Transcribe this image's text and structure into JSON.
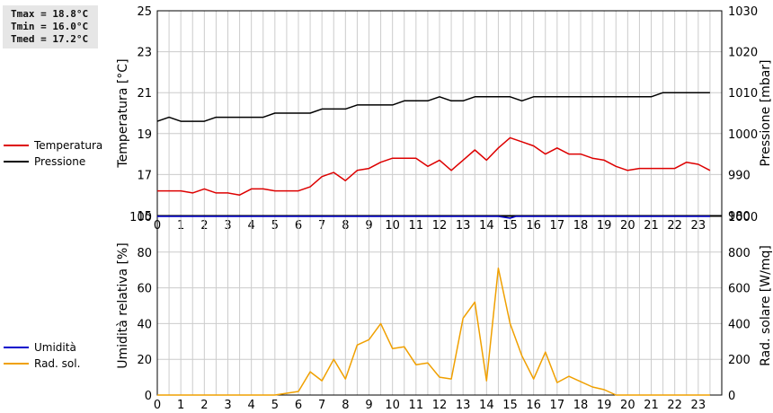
{
  "stats": {
    "tmax": "Tmax = 18.8°C",
    "tmin": "Tmin = 16.0°C",
    "tmed": "Tmed = 17.2°C"
  },
  "chart_data": [
    {
      "type": "line",
      "x_ticks": [
        0,
        1,
        2,
        3,
        4,
        5,
        6,
        7,
        8,
        9,
        10,
        11,
        12,
        13,
        14,
        15,
        16,
        17,
        18,
        19,
        20,
        21,
        22,
        23
      ],
      "xlim": [
        0,
        24
      ],
      "ylabel_left": "Temperatura [°C]",
      "ylim_left": [
        15,
        25
      ],
      "yticks_left": [
        15,
        17,
        19,
        21,
        23,
        25
      ],
      "ylabel_right": "Pressione [mbar]",
      "ylim_right": [
        980,
        1030
      ],
      "yticks_right": [
        980,
        990,
        1000,
        1010,
        1020,
        1030
      ],
      "grid": true,
      "legend_position": "left",
      "series": [
        {
          "name": "Temperatura",
          "axis": "left",
          "color": "#dd0000",
          "x": [
            0,
            0.5,
            1,
            1.5,
            2,
            2.5,
            3,
            3.5,
            4,
            4.5,
            5,
            5.5,
            6,
            6.5,
            7,
            7.5,
            8,
            8.5,
            9,
            9.5,
            10,
            10.5,
            11,
            11.5,
            12,
            12.5,
            13,
            13.5,
            14,
            14.5,
            15,
            15.5,
            16,
            16.5,
            17,
            17.5,
            18,
            18.5,
            19,
            19.5,
            20,
            20.5,
            21,
            21.5,
            22,
            22.5,
            23,
            23.5
          ],
          "y": [
            16.2,
            16.2,
            16.2,
            16.1,
            16.3,
            16.1,
            16.1,
            16.0,
            16.3,
            16.3,
            16.2,
            16.2,
            16.2,
            16.4,
            16.9,
            17.1,
            16.7,
            17.2,
            17.3,
            17.6,
            17.8,
            17.8,
            17.8,
            17.4,
            17.7,
            17.2,
            17.7,
            18.2,
            17.7,
            18.3,
            18.8,
            18.6,
            18.4,
            18.0,
            18.3,
            18.0,
            18.0,
            17.8,
            17.7,
            17.4,
            17.2,
            17.3,
            17.3,
            17.3,
            17.3,
            17.6,
            17.5,
            17.2
          ]
        },
        {
          "name": "Pressione",
          "axis": "right",
          "color": "#000000",
          "x": [
            0,
            0.5,
            1,
            1.5,
            2,
            2.5,
            3,
            3.5,
            4,
            4.5,
            5,
            5.5,
            6,
            6.5,
            7,
            7.5,
            8,
            8.5,
            9,
            9.5,
            10,
            10.5,
            11,
            11.5,
            12,
            12.5,
            13,
            13.5,
            14,
            14.5,
            15,
            15.5,
            16,
            16.5,
            17,
            17.5,
            18,
            18.5,
            19,
            19.5,
            20,
            20.5,
            21,
            21.5,
            22,
            22.5,
            23,
            23.5
          ],
          "y": [
            1003,
            1004,
            1003,
            1003,
            1003,
            1004,
            1004,
            1004,
            1004,
            1004,
            1005,
            1005,
            1005,
            1005,
            1006,
            1006,
            1006,
            1007,
            1007,
            1007,
            1007,
            1008,
            1008,
            1008,
            1009,
            1008,
            1008,
            1009,
            1009,
            1009,
            1009,
            1008,
            1009,
            1009,
            1009,
            1009,
            1009,
            1009,
            1009,
            1009,
            1009,
            1009,
            1009,
            1010,
            1010,
            1010,
            1010,
            1010
          ]
        }
      ]
    },
    {
      "type": "line",
      "x_ticks": [
        0,
        1,
        2,
        3,
        4,
        5,
        6,
        7,
        8,
        9,
        10,
        11,
        12,
        13,
        14,
        15,
        16,
        17,
        18,
        19,
        20,
        21,
        22,
        23
      ],
      "xlim": [
        0,
        24
      ],
      "ylabel_left": "Umidità relativa [%]",
      "ylim_left": [
        0,
        100
      ],
      "yticks_left": [
        0,
        20,
        40,
        60,
        80,
        100
      ],
      "ylabel_right": "Rad. solare [W/mq]",
      "ylim_right": [
        0,
        1000
      ],
      "yticks_right": [
        0,
        200,
        400,
        600,
        800,
        1000
      ],
      "grid": true,
      "legend_position": "left",
      "series": [
        {
          "name": "Umidità",
          "axis": "left",
          "color": "#0000cc",
          "x": [
            0,
            14.5,
            14.75,
            15,
            15.25,
            23.5
          ],
          "y": [
            100,
            100,
            99.5,
            99,
            100,
            100
          ]
        },
        {
          "name": "Rad. sol.",
          "axis": "right",
          "color": "#f0a000",
          "x": [
            0,
            0.5,
            1,
            1.5,
            2,
            2.5,
            3,
            3.5,
            4,
            4.5,
            5,
            5.5,
            6,
            6.5,
            7,
            7.5,
            8,
            8.5,
            9,
            9.5,
            10,
            10.5,
            11,
            11.5,
            12,
            12.5,
            13,
            13.5,
            14,
            14.5,
            15,
            15.5,
            16,
            16.5,
            17,
            17.5,
            18,
            18.5,
            19,
            19.5,
            20,
            20.5,
            21,
            21.5,
            22,
            22.5,
            23,
            23.5
          ],
          "y": [
            0,
            0,
            0,
            0,
            0,
            0,
            0,
            0,
            0,
            0,
            0,
            10,
            20,
            130,
            80,
            200,
            90,
            280,
            310,
            400,
            260,
            270,
            170,
            180,
            100,
            90,
            430,
            520,
            80,
            710,
            400,
            220,
            90,
            240,
            70,
            105,
            75,
            45,
            30,
            0,
            0,
            0,
            0,
            0,
            0,
            0,
            0,
            0
          ]
        }
      ]
    }
  ]
}
